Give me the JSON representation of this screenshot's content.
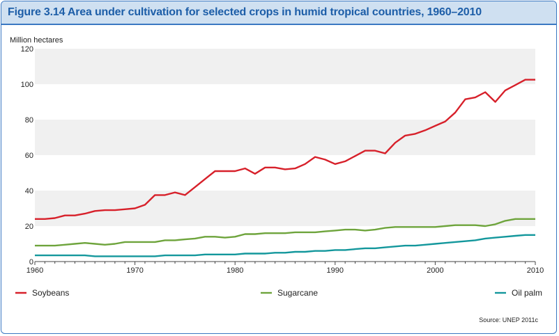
{
  "title": "Figure 3.14 Area under cultivation for selected crops in humid tropical countries, 1960–2010",
  "source": "Source: UNEP 2011c",
  "colors": {
    "border": "#3a78c2",
    "title_text": "#1d5ea8",
    "title_bg": "#cfe0f1",
    "band": "#f0f0f0",
    "soybeans": "#d7202a",
    "sugarcane": "#6ea43c",
    "oil_palm": "#13979c"
  },
  "chart_data": {
    "type": "line",
    "title": "Figure 3.14 Area under cultivation for selected crops in humid tropical countries, 1960–2010",
    "ylabel": "Million hectares",
    "xlabel": "",
    "xlim": [
      1960,
      2010
    ],
    "ylim": [
      0,
      120
    ],
    "xticks": [
      1960,
      1970,
      1980,
      1990,
      2000,
      2010
    ],
    "yticks": [
      0,
      20,
      40,
      60,
      80,
      100,
      120
    ],
    "legend_position": "bottom",
    "x": [
      1960,
      1961,
      1962,
      1963,
      1964,
      1965,
      1966,
      1967,
      1968,
      1969,
      1970,
      1971,
      1972,
      1973,
      1974,
      1975,
      1976,
      1977,
      1978,
      1979,
      1980,
      1981,
      1982,
      1983,
      1984,
      1985,
      1986,
      1987,
      1988,
      1989,
      1990,
      1991,
      1992,
      1993,
      1994,
      1995,
      1996,
      1997,
      1998,
      1999,
      2000,
      2001,
      2002,
      2003,
      2004,
      2005,
      2006,
      2007,
      2008,
      2009,
      2010
    ],
    "series": [
      {
        "name": "Soybeans",
        "color": "#d7202a",
        "values": [
          24,
          24,
          24.5,
          26,
          26,
          27,
          28.5,
          29,
          29,
          29.5,
          30,
          32,
          37.5,
          37.5,
          39,
          37.5,
          42,
          46.5,
          51,
          51,
          51,
          52.5,
          49.5,
          53,
          53,
          52,
          52.5,
          55,
          59,
          57.5,
          55,
          56.5,
          59.5,
          62.5,
          62.5,
          61,
          67,
          71,
          72,
          74,
          76.5,
          79,
          84,
          91.5,
          92.5,
          95.5,
          90,
          96.5,
          99.5,
          102.5,
          102.5
        ]
      },
      {
        "name": "Sugarcane",
        "color": "#6ea43c",
        "values": [
          9,
          9,
          9,
          9.5,
          10,
          10.5,
          10,
          9.5,
          10,
          11,
          11,
          11,
          11,
          12,
          12,
          12.5,
          13,
          14,
          14,
          13.5,
          14,
          15.5,
          15.5,
          16,
          16,
          16,
          16.5,
          16.5,
          16.5,
          17,
          17.5,
          18,
          18,
          17.5,
          18,
          19,
          19.5,
          19.5,
          19.5,
          19.5,
          19.5,
          20,
          20.5,
          20.5,
          20.5,
          20,
          21,
          23,
          24,
          24,
          24
        ]
      },
      {
        "name": "Oil palm",
        "color": "#13979c",
        "values": [
          3.5,
          3.5,
          3.5,
          3.5,
          3.5,
          3.5,
          3,
          3,
          3,
          3,
          3,
          3,
          3,
          3.5,
          3.5,
          3.5,
          3.5,
          4,
          4,
          4,
          4,
          4.5,
          4.5,
          4.5,
          5,
          5,
          5.5,
          5.5,
          6,
          6,
          6.5,
          6.5,
          7,
          7.5,
          7.5,
          8,
          8.5,
          9,
          9,
          9.5,
          10,
          10.5,
          11,
          11.5,
          12,
          13,
          13.5,
          14,
          14.5,
          15,
          15
        ]
      }
    ]
  }
}
